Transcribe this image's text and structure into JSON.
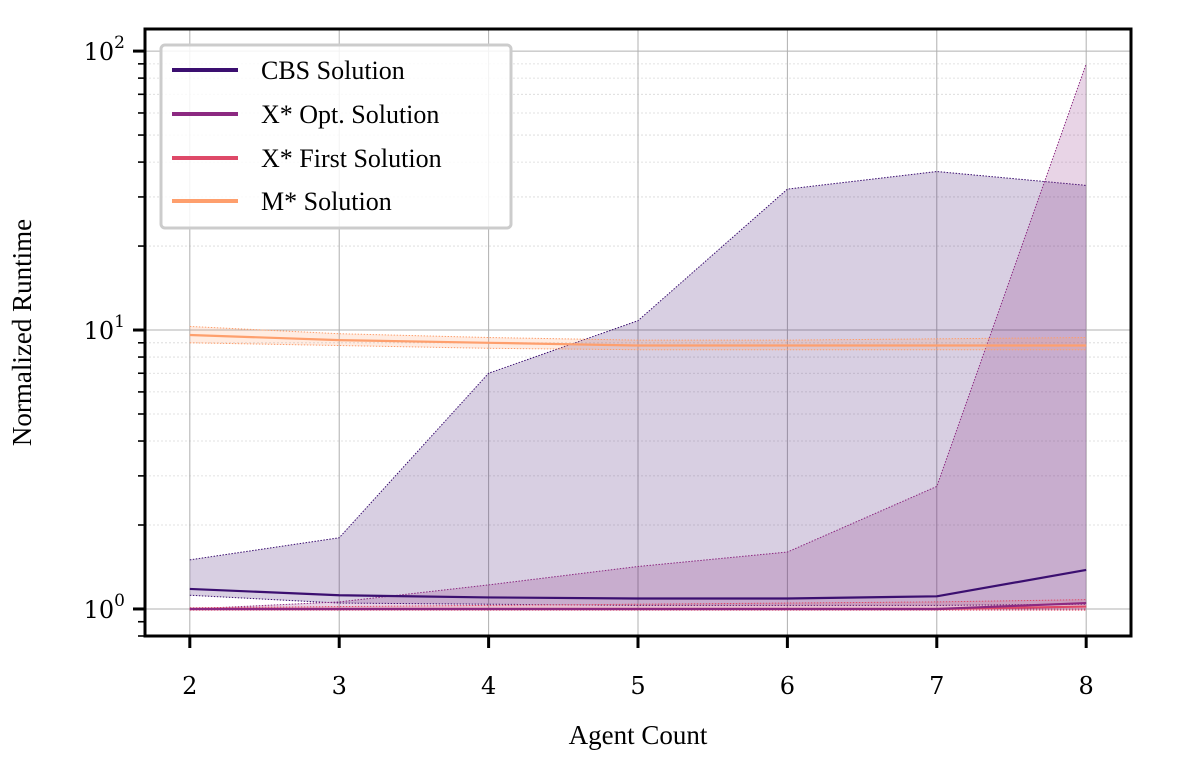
{
  "chart_data": {
    "type": "line",
    "title": "",
    "xlabel": "Agent Count",
    "ylabel": "Normalized Runtime",
    "yscale": "log",
    "x": [
      2,
      3,
      4,
      5,
      6,
      7,
      8
    ],
    "xlim": [
      1.7,
      8.3
    ],
    "ylim": [
      0.8,
      120
    ],
    "x_tick_labels": [
      "2",
      "3",
      "4",
      "5",
      "6",
      "7",
      "8"
    ],
    "y_ticks": [
      {
        "value": 1,
        "base": "10",
        "exp": "0"
      },
      {
        "value": 10,
        "base": "10",
        "exp": "1"
      },
      {
        "value": 100,
        "base": "10",
        "exp": "2"
      }
    ],
    "grid": true,
    "legend_position": "top-left",
    "series": [
      {
        "name": "CBS Solution",
        "color": "#3b0f70",
        "values": [
          1.18,
          1.12,
          1.1,
          1.09,
          1.09,
          1.11,
          1.38
        ],
        "band_lower": [
          1.12,
          1.05,
          1.04,
          1.03,
          1.03,
          1.03,
          1.04
        ],
        "band_upper": [
          1.5,
          1.8,
          7.0,
          10.8,
          32,
          37,
          33
        ]
      },
      {
        "name": "X* Opt. Solution",
        "color": "#8c2981",
        "values": [
          1.0,
          1.0,
          1.0,
          1.0,
          1.0,
          1.0,
          1.05
        ],
        "band_lower": [
          1.0,
          1.0,
          1.0,
          1.0,
          1.0,
          1.0,
          1.0
        ],
        "band_upper": [
          1.0,
          1.06,
          1.22,
          1.42,
          1.6,
          2.75,
          90
        ]
      },
      {
        "name": "X* First Solution",
        "color": "#de4968",
        "values": [
          1.0,
          1.0,
          1.0,
          1.0,
          1.0,
          1.0,
          1.02
        ],
        "band_lower": [
          0.99,
          0.99,
          0.99,
          0.99,
          0.99,
          0.99,
          0.99
        ],
        "band_upper": [
          1.01,
          1.02,
          1.03,
          1.04,
          1.05,
          1.06,
          1.08
        ]
      },
      {
        "name": "M* Solution",
        "color": "#fe9f6d",
        "values": [
          9.6,
          9.2,
          9.0,
          8.8,
          8.8,
          8.8,
          8.8
        ],
        "band_lower": [
          9.0,
          8.8,
          8.6,
          8.5,
          8.5,
          8.5,
          8.5
        ],
        "band_upper": [
          10.3,
          9.7,
          9.4,
          9.2,
          9.2,
          9.3,
          9.4
        ]
      }
    ]
  }
}
